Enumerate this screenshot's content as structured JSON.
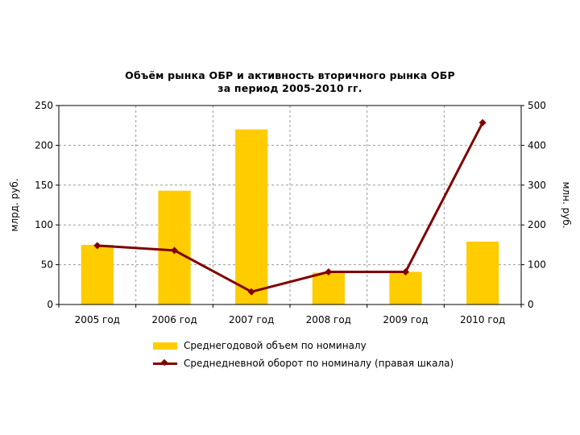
{
  "chart_data": {
    "type": "bar+line",
    "title_line1": "Объём рынка ОБР и активность вторичного рынка ОБР",
    "title_line2": "за период 2005-2010 гг.",
    "categories": [
      "2005 год",
      "2006 год",
      "2007 год",
      "2008 год",
      "2009 год",
      "2010 год"
    ],
    "series": [
      {
        "name": "Среднегодовой объем по номиналу",
        "type": "bar",
        "axis": "left",
        "color": "#FFCC00",
        "values": [
          75,
          143,
          220,
          40,
          41,
          79
        ]
      },
      {
        "name": "Среднедневной оборот по номиналу (правая шкала)",
        "type": "line",
        "axis": "right",
        "color": "#7F0000",
        "values": [
          148,
          136,
          32,
          82,
          82,
          457
        ]
      }
    ],
    "ylabel_left": "млрд. руб.",
    "ylabel_right": "млн. руб.",
    "ylim_left": [
      0,
      250
    ],
    "ylim_right": [
      0,
      500
    ],
    "yticks_left": [
      "0",
      "50",
      "100",
      "150",
      "200",
      "250"
    ],
    "yticks_right": [
      "0",
      "100",
      "200",
      "300",
      "400",
      "500"
    ],
    "grid": true,
    "legend_position": "bottom"
  }
}
